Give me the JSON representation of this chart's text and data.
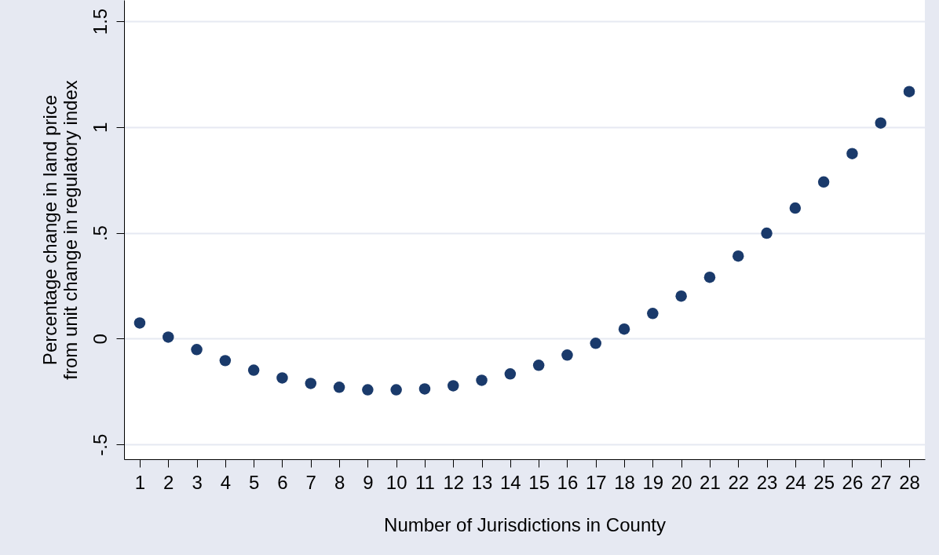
{
  "chart_data": {
    "type": "scatter",
    "xlabel": "Number of Jurisdictions in County",
    "ylabel": "Percentage change in land price\nfrom unit change in regulatory index",
    "x": [
      1,
      2,
      3,
      4,
      5,
      6,
      7,
      8,
      9,
      10,
      11,
      12,
      13,
      14,
      15,
      16,
      17,
      18,
      19,
      20,
      21,
      22,
      23,
      24,
      25,
      26,
      27,
      28
    ],
    "series": [
      {
        "color": "#1a3a6b",
        "values": [
          0.074,
          0.007,
          -0.052,
          -0.104,
          -0.149,
          -0.186,
          -0.212,
          -0.23,
          -0.242,
          -0.242,
          -0.238,
          -0.223,
          -0.197,
          -0.167,
          -0.126,
          -0.078,
          -0.022,
          0.045,
          0.119,
          0.201,
          0.29,
          0.39,
          0.498,
          0.617,
          0.74,
          0.874,
          1.019,
          1.167
        ]
      }
    ],
    "xlim": [
      0.45,
      28.55
    ],
    "xticks": [
      1,
      2,
      3,
      4,
      5,
      6,
      7,
      8,
      9,
      10,
      11,
      12,
      13,
      14,
      15,
      16,
      17,
      18,
      19,
      20,
      21,
      22,
      23,
      24,
      25,
      26,
      27,
      28
    ],
    "ylim": [
      -0.57,
      1.6
    ],
    "yticks": [
      {
        "value": -0.5,
        "label": "-.5"
      },
      0,
      {
        "value": 0.5,
        "label": ".5"
      },
      1,
      1.5
    ],
    "grid": "y",
    "marker": "circle"
  }
}
